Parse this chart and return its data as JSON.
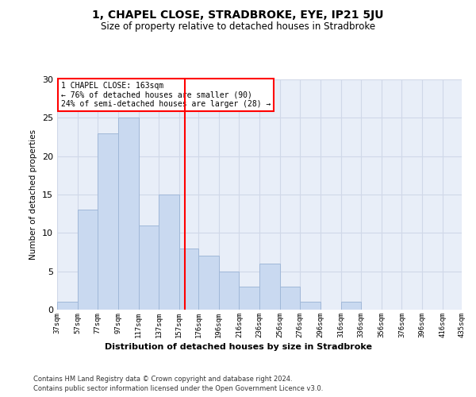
{
  "title": "1, CHAPEL CLOSE, STRADBROKE, EYE, IP21 5JU",
  "subtitle": "Size of property relative to detached houses in Stradbroke",
  "xlabel": "Distribution of detached houses by size in Stradbroke",
  "ylabel": "Number of detached properties",
  "property_label": "1 CHAPEL CLOSE: 163sqm",
  "annotation_line1": "← 76% of detached houses are smaller (90)",
  "annotation_line2": "24% of semi-detached houses are larger (28) →",
  "bins": [
    37,
    57,
    77,
    97,
    117,
    137,
    157,
    176,
    196,
    216,
    236,
    256,
    276,
    296,
    316,
    336,
    356,
    376,
    396,
    416,
    435
  ],
  "values": [
    1,
    13,
    23,
    25,
    11,
    15,
    8,
    7,
    5,
    3,
    6,
    3,
    1,
    0,
    1,
    0,
    0,
    0,
    0,
    0
  ],
  "bar_color": "#c9d9f0",
  "bar_edge_color": "#a0b8d8",
  "red_line_x": 163,
  "ylim": [
    0,
    30
  ],
  "yticks": [
    0,
    5,
    10,
    15,
    20,
    25,
    30
  ],
  "grid_color": "#d0d8e8",
  "background_color": "#e8eef8",
  "footer_line1": "Contains HM Land Registry data © Crown copyright and database right 2024.",
  "footer_line2": "Contains public sector information licensed under the Open Government Licence v3.0."
}
